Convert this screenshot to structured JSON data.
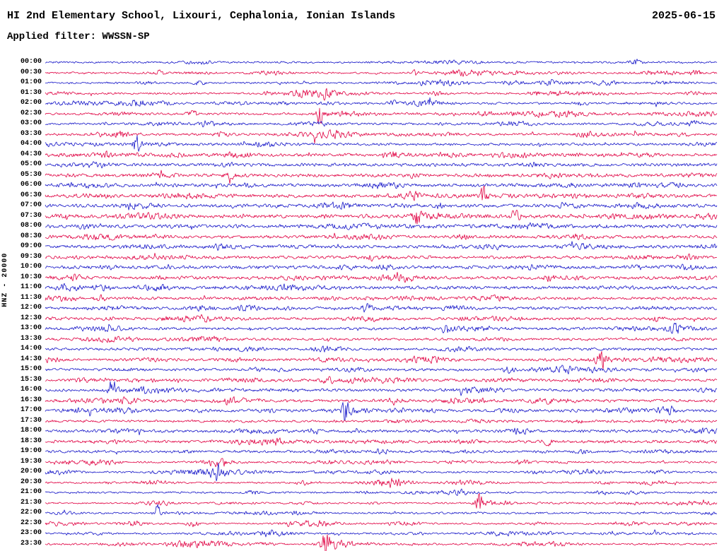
{
  "header": {
    "title": "HI 2nd Elementary School, Lixouri, Cephalonia, Ionian Islands",
    "date": "2025-06-15",
    "filter_label": "Applied filter: WWSSN-SP"
  },
  "station_label": "HNZ - 20000",
  "chart_data": {
    "type": "line",
    "subtype": "seismogram-helicorder",
    "title": "HI 2nd Elementary School, Lixouri, Cephalonia, Ionian Islands",
    "date": "2025-06-15",
    "filter": "WWSSN-SP",
    "channel_gain_label": "HNZ - 20000",
    "minutes_per_row": 30,
    "trace_colors": [
      "#1515c8",
      "#e00042"
    ],
    "legend_position": "none",
    "grid": false,
    "rows_note": "48 half-hour traces 00:00-23:30; c=0 blue, c=1 red; a=relative background noise amplitude; e=[position fraction along row, spike amplitude px]",
    "rows": [
      {
        "t": "00:00",
        "c": 0,
        "a": 1.0,
        "e": [
          [
            0.88,
            2.5
          ]
        ]
      },
      {
        "t": "00:30",
        "c": 1,
        "a": 1.0,
        "e": [
          [
            0.17,
            3
          ],
          [
            0.55,
            2.5
          ],
          [
            0.97,
            3
          ]
        ]
      },
      {
        "t": "01:00",
        "c": 0,
        "a": 1.0,
        "e": [
          [
            0.23,
            2.5
          ],
          [
            0.7,
            2
          ]
        ]
      },
      {
        "t": "01:30",
        "c": 1,
        "a": 1.0,
        "e": [
          [
            0.415,
            3.5
          ],
          [
            0.73,
            2.5
          ]
        ]
      },
      {
        "t": "02:00",
        "c": 0,
        "a": 1.1,
        "e": [
          [
            0.52,
            2
          ]
        ]
      },
      {
        "t": "02:30",
        "c": 1,
        "a": 1.2,
        "e": [
          [
            0.408,
            12
          ],
          [
            0.22,
            3
          ]
        ]
      },
      {
        "t": "03:00",
        "c": 0,
        "a": 1.1,
        "e": [
          [
            0.965,
            4
          ],
          [
            0.24,
            2.5
          ]
        ]
      },
      {
        "t": "03:30",
        "c": 1,
        "a": 1.2,
        "e": [
          [
            0.115,
            3
          ],
          [
            0.8,
            2.5
          ]
        ]
      },
      {
        "t": "04:00",
        "c": 0,
        "a": 1.3,
        "e": [
          [
            0.136,
            10
          ]
        ]
      },
      {
        "t": "04:30",
        "c": 1,
        "a": 1.5,
        "e": [
          [
            0.09,
            3
          ],
          [
            0.52,
            2.5
          ]
        ]
      },
      {
        "t": "05:00",
        "c": 0,
        "a": 1.6,
        "e": []
      },
      {
        "t": "05:30",
        "c": 1,
        "a": 1.7,
        "e": [
          [
            0.275,
            4
          ]
        ]
      },
      {
        "t": "06:00",
        "c": 0,
        "a": 1.7,
        "e": []
      },
      {
        "t": "06:30",
        "c": 1,
        "a": 1.7,
        "e": [
          [
            0.652,
            9
          ],
          [
            0.545,
            4
          ]
        ]
      },
      {
        "t": "07:00",
        "c": 0,
        "a": 1.7,
        "e": [
          [
            0.59,
            3
          ]
        ]
      },
      {
        "t": "07:30",
        "c": 1,
        "a": 1.7,
        "e": [
          [
            0.553,
            10
          ],
          [
            0.7,
            5
          ]
        ]
      },
      {
        "t": "08:00",
        "c": 0,
        "a": 1.8,
        "e": [
          [
            0.06,
            3
          ]
        ]
      },
      {
        "t": "08:30",
        "c": 1,
        "a": 1.6,
        "e": [
          [
            0.62,
            3
          ]
        ]
      },
      {
        "t": "09:00",
        "c": 0,
        "a": 1.6,
        "e": []
      },
      {
        "t": "09:30",
        "c": 1,
        "a": 1.6,
        "e": []
      },
      {
        "t": "10:00",
        "c": 0,
        "a": 1.7,
        "e": []
      },
      {
        "t": "10:30",
        "c": 1,
        "a": 1.6,
        "e": [
          [
            0.75,
            3
          ]
        ]
      },
      {
        "t": "11:00",
        "c": 0,
        "a": 1.7,
        "e": [
          [
            0.025,
            3.5
          ]
        ]
      },
      {
        "t": "11:30",
        "c": 1,
        "a": 1.5,
        "e": [
          [
            0.08,
            3
          ]
        ]
      },
      {
        "t": "12:00",
        "c": 0,
        "a": 1.5,
        "e": [
          [
            0.479,
            4
          ]
        ]
      },
      {
        "t": "12:30",
        "c": 1,
        "a": 1.4,
        "e": [
          [
            0.91,
            3
          ]
        ]
      },
      {
        "t": "13:00",
        "c": 0,
        "a": 1.4,
        "e": [
          [
            0.596,
            6
          ],
          [
            0.938,
            5
          ]
        ]
      },
      {
        "t": "13:30",
        "c": 1,
        "a": 1.4,
        "e": []
      },
      {
        "t": "14:00",
        "c": 0,
        "a": 1.4,
        "e": []
      },
      {
        "t": "14:30",
        "c": 1,
        "a": 1.3,
        "e": [
          [
            0.829,
            10
          ]
        ]
      },
      {
        "t": "15:00",
        "c": 0,
        "a": 1.3,
        "e": [
          [
            0.69,
            3
          ]
        ]
      },
      {
        "t": "15:30",
        "c": 1,
        "a": 1.4,
        "e": [
          [
            0.42,
            3
          ]
        ]
      },
      {
        "t": "16:00",
        "c": 0,
        "a": 1.4,
        "e": [
          [
            0.1,
            10
          ]
        ]
      },
      {
        "t": "16:30",
        "c": 1,
        "a": 1.5,
        "e": [
          [
            0.52,
            3
          ]
        ]
      },
      {
        "t": "17:00",
        "c": 0,
        "a": 1.4,
        "e": [
          [
            0.447,
            10
          ],
          [
            0.93,
            3
          ]
        ]
      },
      {
        "t": "17:30",
        "c": 1,
        "a": 1.3,
        "e": []
      },
      {
        "t": "18:00",
        "c": 0,
        "a": 1.5,
        "e": [
          [
            0.4,
            3
          ]
        ]
      },
      {
        "t": "18:30",
        "c": 1,
        "a": 1.5,
        "e": [
          [
            0.75,
            3
          ]
        ]
      },
      {
        "t": "19:00",
        "c": 0,
        "a": 1.3,
        "e": [
          [
            0.5,
            3
          ]
        ]
      },
      {
        "t": "19:30",
        "c": 1,
        "a": 1.0,
        "e": [
          [
            0.26,
            2.5
          ]
        ]
      },
      {
        "t": "20:00",
        "c": 0,
        "a": 1.0,
        "e": [
          [
            0.254,
            11
          ]
        ]
      },
      {
        "t": "20:30",
        "c": 1,
        "a": 0.9,
        "e": []
      },
      {
        "t": "21:00",
        "c": 0,
        "a": 1.0,
        "e": [
          [
            0.31,
            3
          ]
        ]
      },
      {
        "t": "21:30",
        "c": 1,
        "a": 0.9,
        "e": [
          [
            0.645,
            11
          ]
        ]
      },
      {
        "t": "22:00",
        "c": 0,
        "a": 1.0,
        "e": [
          [
            0.167,
            8
          ]
        ]
      },
      {
        "t": "22:30",
        "c": 1,
        "a": 0.9,
        "e": [
          [
            0.22,
            2.5
          ]
        ]
      },
      {
        "t": "23:00",
        "c": 0,
        "a": 0.9,
        "e": []
      },
      {
        "t": "23:30",
        "c": 1,
        "a": 1.0,
        "e": [
          [
            0.416,
            13
          ]
        ]
      }
    ]
  }
}
